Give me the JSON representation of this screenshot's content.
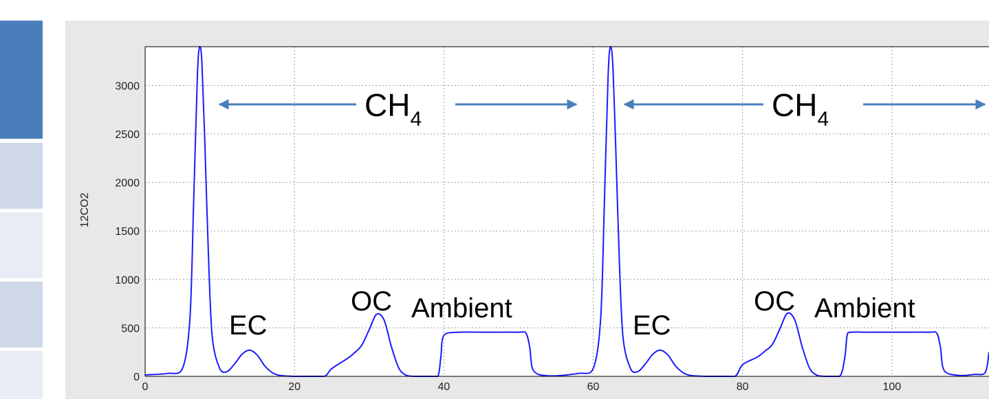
{
  "colors": {
    "line": "#1a1aff",
    "arrow": "#4a7ebb",
    "panel": "#e8e8e8",
    "side_dark": "#4a7ebb",
    "side_mid": "#cfd8e9",
    "side_light": "#e8ecf4"
  },
  "chart_data": {
    "type": "line",
    "title": "",
    "xlabel": "",
    "ylabel": "12CO2",
    "xlim": [
      0,
      113
    ],
    "ylim": [
      0,
      3400
    ],
    "grid": true,
    "xticks": [
      0,
      20,
      40,
      60,
      80,
      100
    ],
    "yticks": [
      0,
      500,
      1000,
      1500,
      2000,
      2500,
      3000
    ],
    "series": [
      {
        "x": [
          0,
          3,
          5,
          6,
          6.5,
          7,
          7.3,
          7.6,
          8,
          8.5,
          9,
          10,
          11,
          12,
          13,
          14,
          15,
          16,
          17,
          18,
          20,
          22,
          24,
          25,
          27,
          28,
          29,
          30,
          31,
          32,
          33,
          34,
          35,
          36,
          38,
          39.2,
          39.6,
          40,
          42,
          46,
          50,
          51,
          51.5,
          52,
          54,
          58,
          60,
          61,
          61.5,
          62,
          62.3,
          62.6,
          63,
          63.5,
          64,
          65,
          66,
          67,
          68,
          69,
          70,
          71,
          72,
          73,
          75,
          77,
          79,
          80,
          82,
          83,
          84,
          85,
          86,
          87,
          88,
          89,
          90,
          91,
          93,
          93.7,
          94,
          94.5,
          97,
          101,
          105,
          106,
          106.5,
          107,
          109,
          111,
          112.5,
          113
        ],
        "y": [
          15,
          30,
          80,
          600,
          1800,
          3100,
          3400,
          3250,
          2400,
          1200,
          400,
          80,
          50,
          130,
          230,
          270,
          220,
          110,
          40,
          10,
          0,
          0,
          0,
          80,
          180,
          240,
          320,
          480,
          640,
          580,
          300,
          80,
          10,
          0,
          0,
          0,
          200,
          420,
          455,
          455,
          455,
          445,
          300,
          60,
          5,
          30,
          80,
          600,
          1800,
          3100,
          3400,
          3250,
          2400,
          1200,
          400,
          80,
          50,
          130,
          230,
          270,
          220,
          110,
          40,
          10,
          0,
          0,
          0,
          120,
          200,
          260,
          330,
          490,
          650,
          580,
          300,
          80,
          10,
          0,
          0,
          200,
          420,
          455,
          455,
          455,
          455,
          445,
          300,
          60,
          10,
          20,
          40,
          250
        ]
      }
    ],
    "annotations": {
      "ch4_left": "CH",
      "ch4_left_sub": "4",
      "ch4_right": "CH",
      "ch4_right_sub": "4",
      "ec_left": "EC",
      "oc_left": "OC",
      "ambient_left": "Ambient",
      "ec_right": "EC",
      "oc_right": "OC",
      "ambient_right": "Ambient"
    }
  }
}
